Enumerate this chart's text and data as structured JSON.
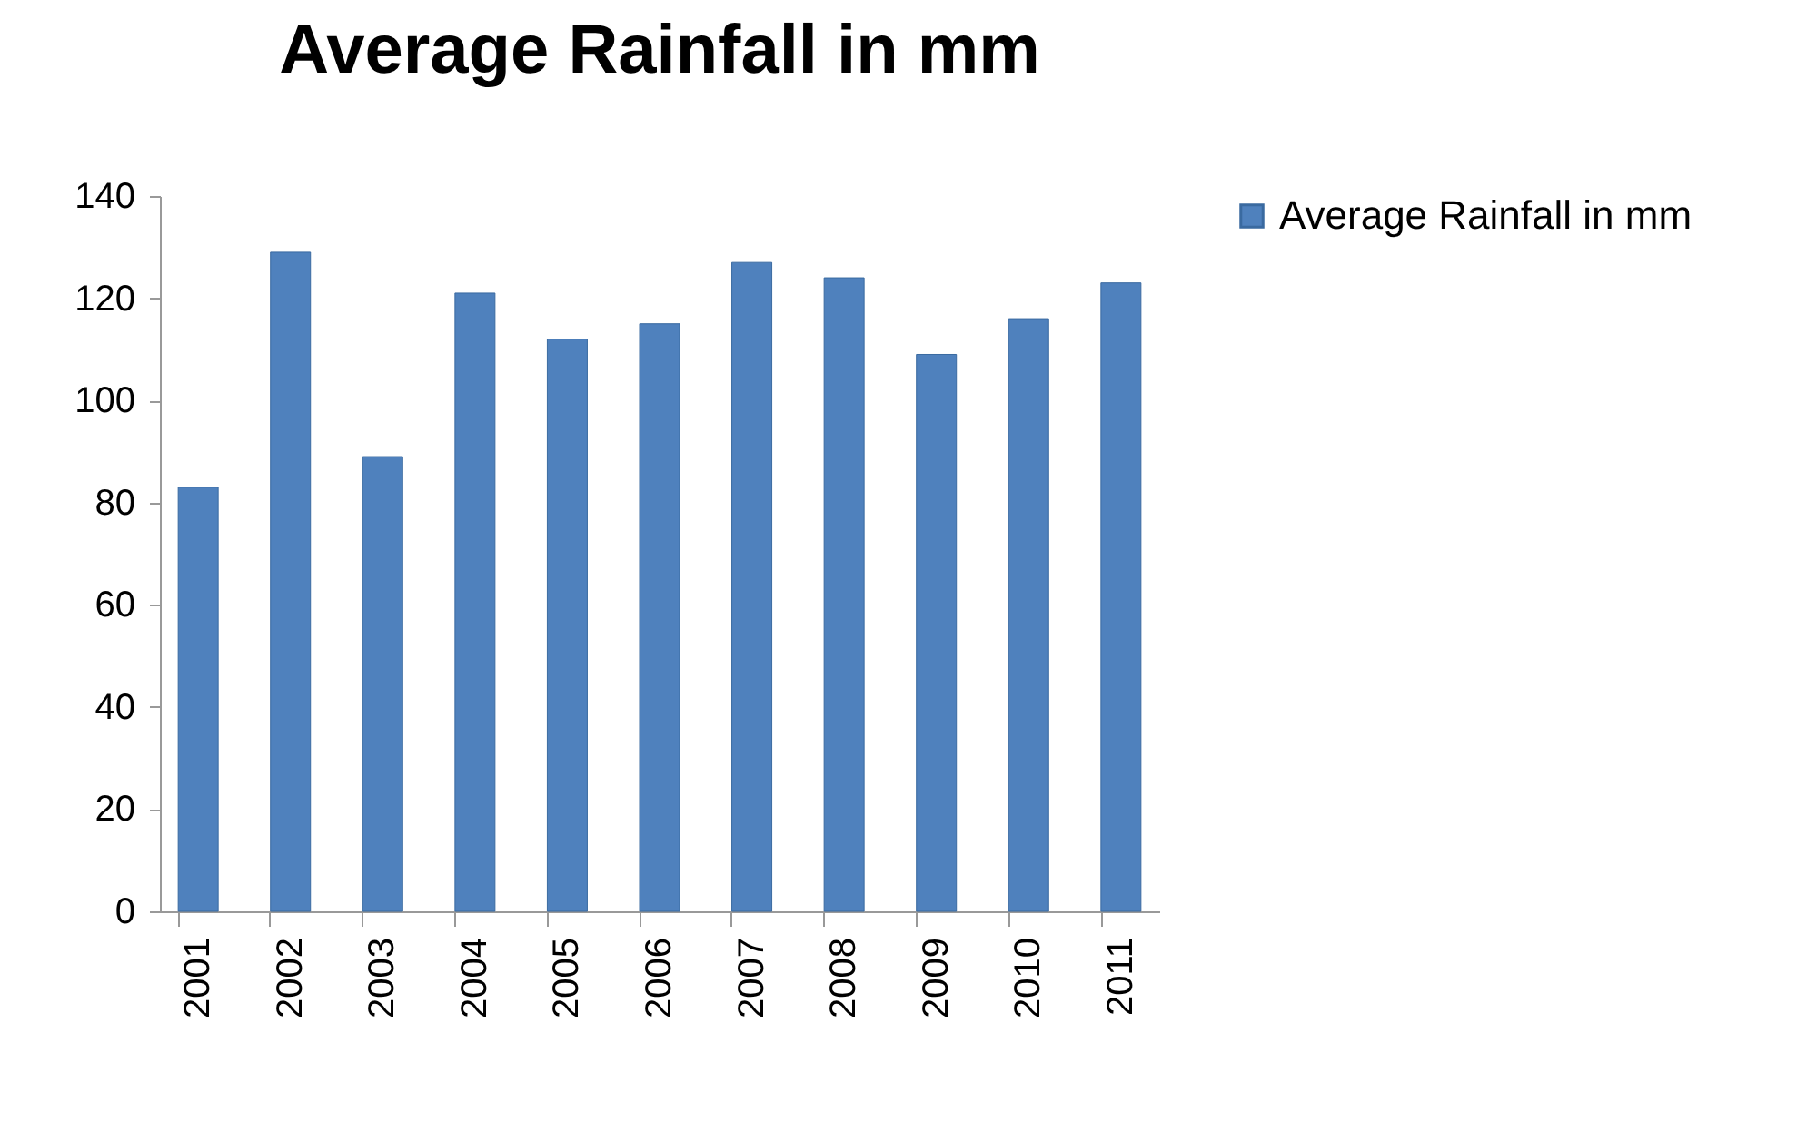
{
  "chart_data": {
    "type": "bar",
    "title": "Average Rainfall in mm",
    "categories": [
      "2001",
      "2002",
      "2003",
      "2004",
      "2005",
      "2006",
      "2007",
      "2008",
      "2009",
      "2010",
      "2011"
    ],
    "series": [
      {
        "name": "Average Rainfall in mm",
        "color": "#4f81bd",
        "values": [
          83,
          129,
          89,
          121,
          112,
          115,
          127,
          124,
          109,
          116,
          123
        ]
      }
    ],
    "ylim": [
      0,
      140
    ],
    "yticks": [
      0,
      20,
      40,
      60,
      80,
      100,
      120,
      140
    ],
    "grid": false,
    "legend": "right"
  }
}
